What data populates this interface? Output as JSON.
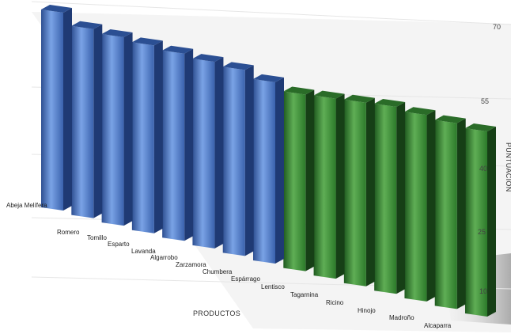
{
  "chart_data": {
    "type": "bar",
    "style": "3d-perspective",
    "xlabel": "PRODUCTOS",
    "ylabel": "PUNTUACIÓN",
    "ylim": [
      0,
      75
    ],
    "yticks": [
      10,
      25,
      40,
      55,
      70
    ],
    "grid": true,
    "legend": "none",
    "colors": {
      "group_a": "#4f79c4",
      "group_b": "#3d8a3a"
    },
    "categories": [
      "Abeja Melífera",
      "Romero",
      "Tomillo",
      "Esparto",
      "Lavanda",
      "Algarrobo",
      "Zarzamora",
      "Chumbera",
      "Espárrago",
      "Lentisco",
      "Tagarnina",
      "Ricino",
      "Hinojo",
      "Madroño",
      "Alcaparra"
    ],
    "values": [
      72,
      68,
      66,
      64,
      62,
      60,
      58,
      55,
      52,
      51,
      50,
      49,
      47,
      45,
      43
    ],
    "groups": [
      "a",
      "a",
      "a",
      "a",
      "a",
      "a",
      "a",
      "a",
      "b",
      "b",
      "b",
      "b",
      "b",
      "b",
      "b"
    ]
  }
}
